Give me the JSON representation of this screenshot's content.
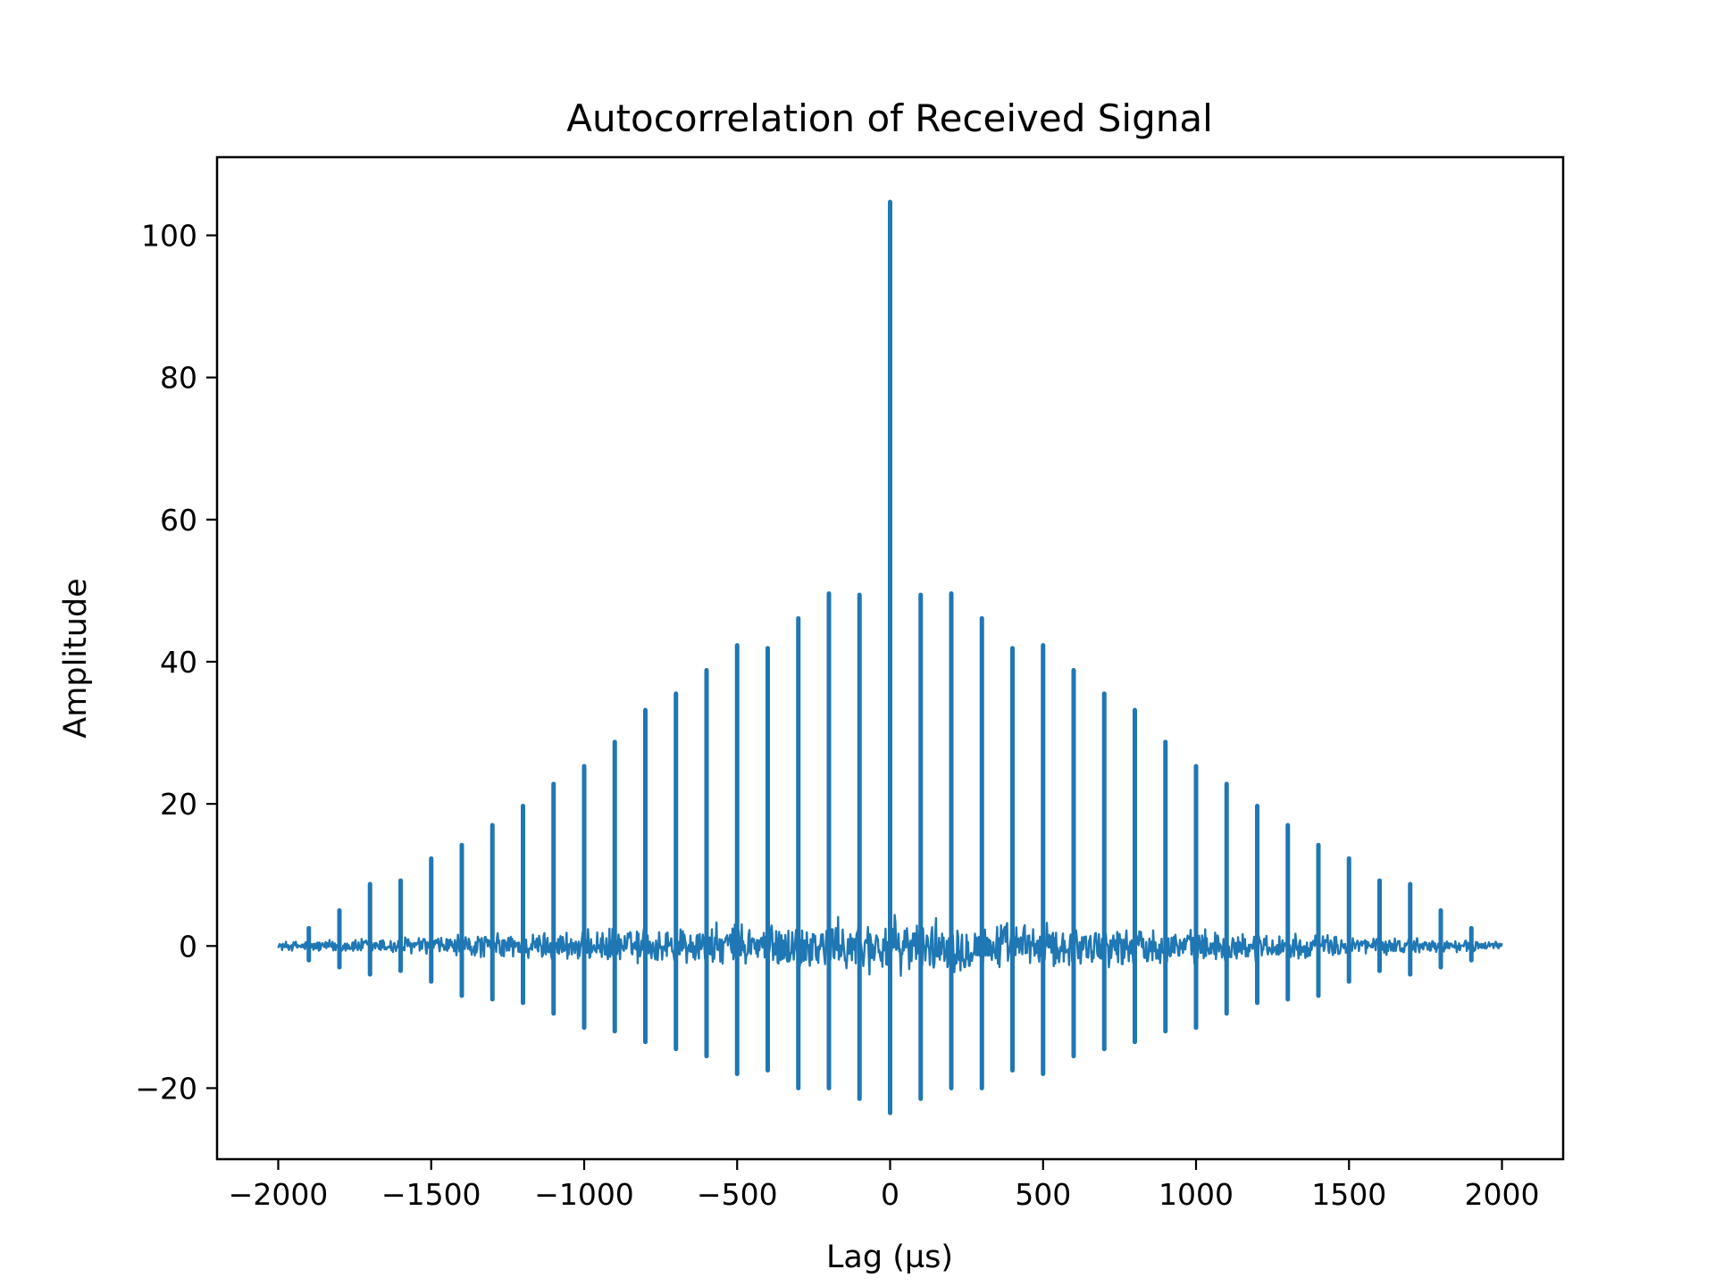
{
  "chart_data": {
    "type": "line",
    "title": "Autocorrelation of Received Signal",
    "xlabel": "Lag (µs)",
    "ylabel": "Amplitude",
    "xlim": [
      -2200,
      2200
    ],
    "ylim": [
      -30,
      111
    ],
    "x_ticks": [
      -2000,
      -1500,
      -1000,
      -500,
      0,
      500,
      1000,
      1500,
      2000
    ],
    "x_tick_labels": [
      "−2000",
      "−1500",
      "−1000",
      "−500",
      "0",
      "500",
      "1000",
      "1500",
      "2000"
    ],
    "y_ticks": [
      -20,
      0,
      20,
      40,
      60,
      80,
      100
    ],
    "y_tick_labels": [
      "−20",
      "0",
      "20",
      "40",
      "60",
      "80",
      "100"
    ],
    "grid": false,
    "series": [
      {
        "color": "#1f77b4",
        "x_range": [
          -2000,
          2000
        ],
        "peak_x": [
          -1900,
          -1800,
          -1700,
          -1600,
          -1500,
          -1400,
          -1300,
          -1200,
          -1100,
          -1000,
          -900,
          -800,
          -700,
          -600,
          -500,
          -400,
          -300,
          -200,
          -100,
          0,
          100,
          200,
          300,
          400,
          500,
          600,
          700,
          800,
          900,
          1000,
          1100,
          1200,
          1300,
          1400,
          1500,
          1600,
          1700,
          1800,
          1900
        ],
        "peak_max": [
          2.5,
          5,
          8.7,
          9.2,
          12.3,
          14.2,
          17,
          19.7,
          22.8,
          25.3,
          28.7,
          33.2,
          35.5,
          38.8,
          42.3,
          41.9,
          46.1,
          49.6,
          49.4,
          104.7,
          49.4,
          49.6,
          46.1,
          41.9,
          42.3,
          38.8,
          35.5,
          33.2,
          28.7,
          25.3,
          22.8,
          19.7,
          17,
          14.2,
          12.3,
          9.2,
          8.7,
          5,
          2.5
        ],
        "peak_min": [
          -2,
          -3,
          -4,
          -3.5,
          -5,
          -7,
          -7.5,
          -8,
          -9.5,
          -11.5,
          -12,
          -13.5,
          -14.5,
          -15.5,
          -18,
          -17.5,
          -20,
          -20,
          -21.5,
          -23.5,
          -21.5,
          -20,
          -20,
          -17.5,
          -18,
          -15.5,
          -14.5,
          -13.5,
          -12,
          -11.5,
          -9.5,
          -8,
          -7.5,
          -7,
          -5,
          -3.5,
          -4,
          -3,
          -2
        ],
        "noise_envelope_at_center": 4.5,
        "noise_envelope_at_edges": 0.7
      }
    ]
  }
}
